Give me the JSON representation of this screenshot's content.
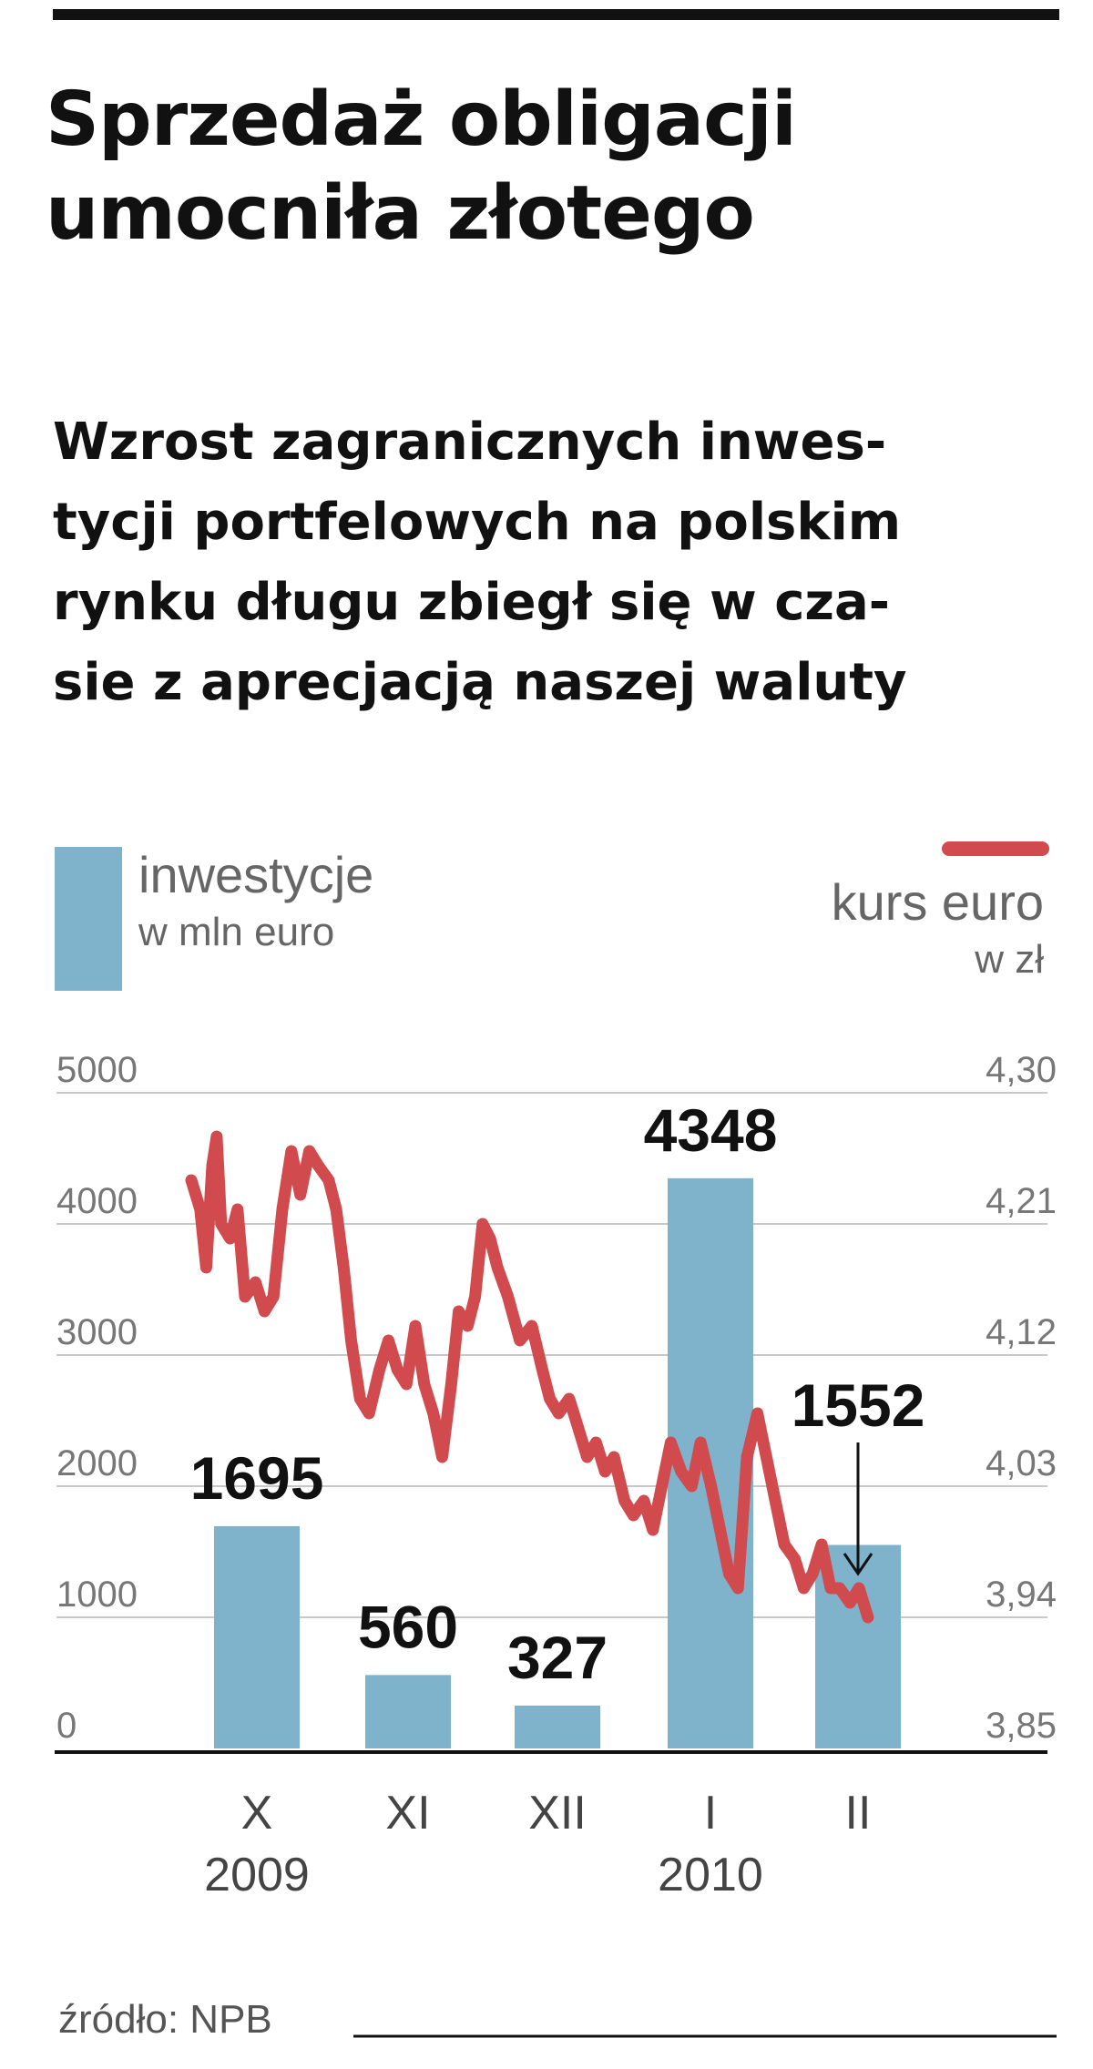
{
  "title_lines": [
    "Sprzedaż obligacji",
    "umocniła złotego"
  ],
  "subtitle_lines": [
    "Wzrost zagranicznych inwes-",
    "tycji portfelowych na polskim",
    "rynku długu zbiegł się w cza-",
    "sie z aprecjacją naszej waluty"
  ],
  "source": "źródło: NPB",
  "colors": {
    "bar": "#7fb2cb",
    "line": "#d14a4d",
    "text": "#111111",
    "grid": "#c8c8c8"
  },
  "chart_data": {
    "type": "bar+line",
    "legend": [
      {
        "series": "bars",
        "label_lines": [
          "inwestycje",
          "w mln euro"
        ]
      },
      {
        "series": "line",
        "label_lines": [
          "kurs euro",
          "w zł"
        ]
      }
    ],
    "categories": [
      {
        "month": "X",
        "year": "2009"
      },
      {
        "month": "XI",
        "year": ""
      },
      {
        "month": "XII",
        "year": ""
      },
      {
        "month": "I",
        "year": "2010"
      },
      {
        "month": "II",
        "year": ""
      }
    ],
    "bars": {
      "values": [
        1695,
        560,
        327,
        4348,
        1552
      ],
      "data_labels": [
        "1695",
        "560",
        "327",
        "4348",
        "1552"
      ],
      "axis": {
        "min": 0,
        "max": 5000,
        "ticks": [
          "0",
          "1000",
          "2000",
          "3000",
          "4000",
          "5000"
        ]
      }
    },
    "line": {
      "axis": {
        "min": 3.85,
        "max": 4.3,
        "ticks": [
          "3,85",
          "3,94",
          "4,03",
          "4,12",
          "4,21",
          "4,30"
        ]
      },
      "x_range": [
        0,
        5
      ],
      "points": [
        [
          0.0,
          4.24
        ],
        [
          0.06,
          4.22
        ],
        [
          0.1,
          4.18
        ],
        [
          0.14,
          4.25
        ],
        [
          0.17,
          4.27
        ],
        [
          0.2,
          4.21
        ],
        [
          0.26,
          4.2
        ],
        [
          0.31,
          4.22
        ],
        [
          0.36,
          4.16
        ],
        [
          0.43,
          4.17
        ],
        [
          0.49,
          4.15
        ],
        [
          0.55,
          4.16
        ],
        [
          0.61,
          4.22
        ],
        [
          0.67,
          4.26
        ],
        [
          0.73,
          4.23
        ],
        [
          0.79,
          4.26
        ],
        [
          0.85,
          4.25
        ],
        [
          0.92,
          4.24
        ],
        [
          0.97,
          4.22
        ],
        [
          1.02,
          4.18
        ],
        [
          1.07,
          4.13
        ],
        [
          1.13,
          4.09
        ],
        [
          1.19,
          4.08
        ],
        [
          1.26,
          4.11
        ],
        [
          1.32,
          4.13
        ],
        [
          1.38,
          4.11
        ],
        [
          1.44,
          4.1
        ],
        [
          1.5,
          4.14
        ],
        [
          1.56,
          4.1
        ],
        [
          1.62,
          4.08
        ],
        [
          1.68,
          4.05
        ],
        [
          1.74,
          4.1
        ],
        [
          1.79,
          4.15
        ],
        [
          1.85,
          4.14
        ],
        [
          1.9,
          4.16
        ],
        [
          1.95,
          4.21
        ],
        [
          2.0,
          4.2
        ],
        [
          2.05,
          4.18
        ],
        [
          2.12,
          4.16
        ],
        [
          2.2,
          4.13
        ],
        [
          2.28,
          4.14
        ],
        [
          2.35,
          4.11
        ],
        [
          2.4,
          4.09
        ],
        [
          2.46,
          4.08
        ],
        [
          2.53,
          4.09
        ],
        [
          2.59,
          4.07
        ],
        [
          2.65,
          4.05
        ],
        [
          2.71,
          4.06
        ],
        [
          2.77,
          4.04
        ],
        [
          2.83,
          4.05
        ],
        [
          2.9,
          4.02
        ],
        [
          2.96,
          4.01
        ],
        [
          3.03,
          4.02
        ],
        [
          3.09,
          4.0
        ],
        [
          3.15,
          4.03
        ],
        [
          3.21,
          4.06
        ],
        [
          3.28,
          4.04
        ],
        [
          3.35,
          4.03
        ],
        [
          3.41,
          4.06
        ],
        [
          3.48,
          4.03
        ],
        [
          3.54,
          4.0
        ],
        [
          3.6,
          3.97
        ],
        [
          3.66,
          3.96
        ],
        [
          3.72,
          4.05
        ],
        [
          3.79,
          4.08
        ],
        [
          3.85,
          4.05
        ],
        [
          3.91,
          4.02
        ],
        [
          3.97,
          3.99
        ],
        [
          4.04,
          3.98
        ],
        [
          4.1,
          3.96
        ],
        [
          4.16,
          3.97
        ],
        [
          4.22,
          3.99
        ],
        [
          4.28,
          3.96
        ],
        [
          4.34,
          3.96
        ],
        [
          4.41,
          3.95
        ],
        [
          4.47,
          3.96
        ],
        [
          4.53,
          3.94
        ]
      ]
    },
    "annotation": {
      "category_index": 4,
      "from_value": 4.06,
      "to_value": 3.97
    }
  }
}
